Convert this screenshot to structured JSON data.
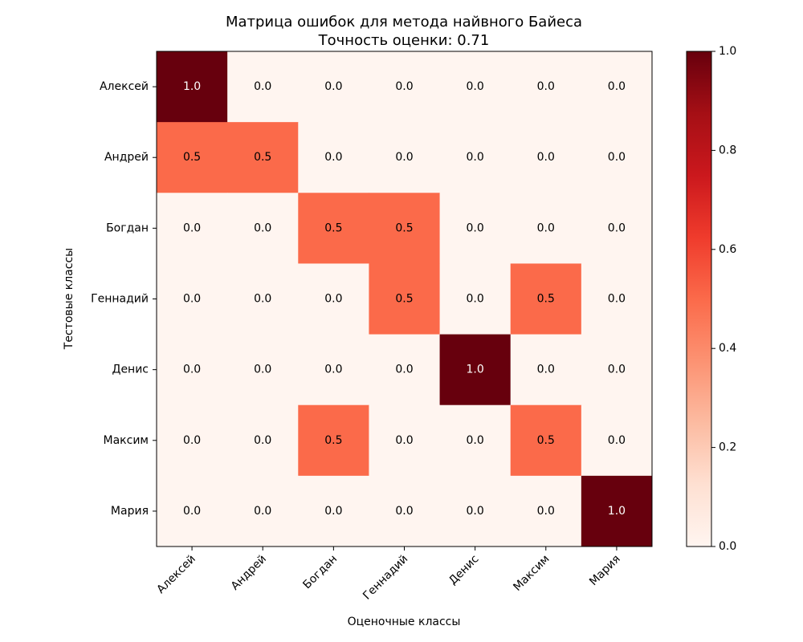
{
  "chart_data": {
    "type": "heatmap",
    "title": "Матрица ошибок для метода найвного Байеса",
    "subtitle": "Точность оценки: 0.71",
    "xlabel": "Оценочные классы",
    "ylabel": "Тестовые классы",
    "x_categories": [
      "Алексей",
      "Андрей",
      "Богдан",
      "Геннадий",
      "Денис",
      "Максим",
      "Мария"
    ],
    "y_categories": [
      "Алексей",
      "Андрей",
      "Богдан",
      "Геннадий",
      "Денис",
      "Максим",
      "Мария"
    ],
    "values": [
      [
        1.0,
        0.0,
        0.0,
        0.0,
        0.0,
        0.0,
        0.0
      ],
      [
        0.5,
        0.5,
        0.0,
        0.0,
        0.0,
        0.0,
        0.0
      ],
      [
        0.0,
        0.0,
        0.5,
        0.5,
        0.0,
        0.0,
        0.0
      ],
      [
        0.0,
        0.0,
        0.0,
        0.5,
        0.0,
        0.5,
        0.0
      ],
      [
        0.0,
        0.0,
        0.0,
        0.0,
        1.0,
        0.0,
        0.0
      ],
      [
        0.0,
        0.0,
        0.5,
        0.0,
        0.0,
        0.5,
        0.0
      ],
      [
        0.0,
        0.0,
        0.0,
        0.0,
        0.0,
        0.0,
        1.0
      ]
    ],
    "colormap": "Reds",
    "colors": {
      "low": "#fff5f0",
      "mid": "#fb6a4a",
      "high": "#67000d"
    },
    "colorbar": {
      "range": [
        0.0,
        1.0
      ],
      "ticks": [
        "0.0",
        "0.2",
        "0.4",
        "0.6",
        "0.8",
        "1.0"
      ]
    },
    "grid": false
  }
}
